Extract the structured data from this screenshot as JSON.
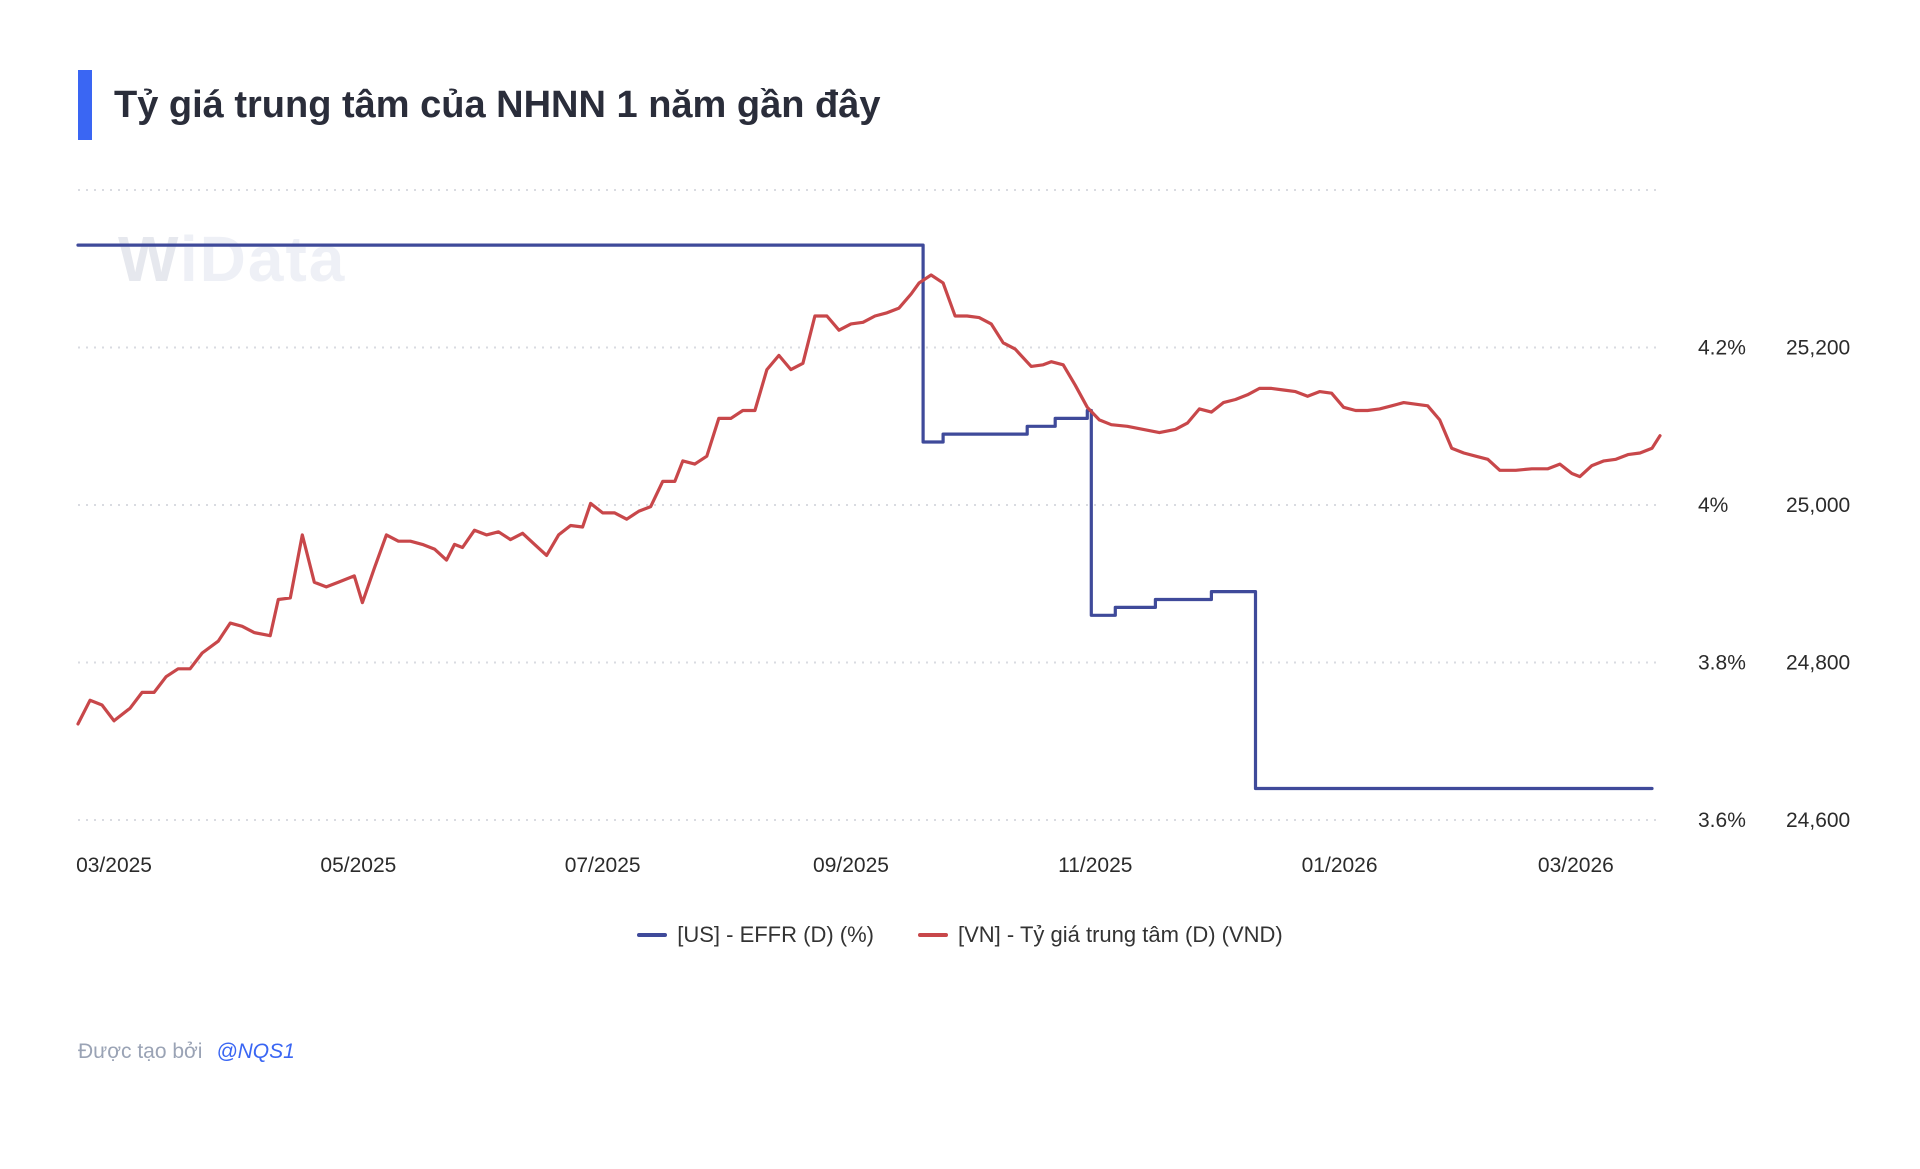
{
  "page": {
    "title": "Tỷ giá trung tâm của NHNN 1 năm gần đây"
  },
  "watermark": {
    "w": "W",
    "rest": "iData"
  },
  "credit": {
    "prefix": "Được tạo bởi",
    "handle": "@NQS1"
  },
  "colors": {
    "accent": "#3a66f3",
    "effr": "#3f4a9a",
    "vnd": "#c8474a",
    "grid": "#d9dbe1"
  },
  "chart_data": {
    "type": "line",
    "title": "Tỷ giá trung tâm của NHNN 1 năm gần đây",
    "x_ticks": [
      "03/2025",
      "05/2025",
      "07/2025",
      "09/2025",
      "11/2025",
      "01/2026",
      "03/2026"
    ],
    "x_range": [
      "2025-02-20",
      "2026-03-22"
    ],
    "y_left_ticks": [
      "4.2%",
      "4%",
      "3.8%",
      "3.6%"
    ],
    "y_right_ticks": [
      "25,200",
      "25,000",
      "24,800",
      "24,600"
    ],
    "y_left_range": [
      3.6,
      4.4
    ],
    "y_right_range": [
      24600,
      25400
    ],
    "grid": true,
    "legend_position": "bottom-center",
    "series": [
      {
        "name": "[US] - EFFR (D) (%)",
        "axis": "left",
        "step": true,
        "points": [
          [
            "2025-02-20",
            4.33
          ],
          [
            "2025-09-18",
            4.33
          ],
          [
            "2025-09-19",
            4.08
          ],
          [
            "2025-09-24",
            4.09
          ],
          [
            "2025-10-15",
            4.1
          ],
          [
            "2025-10-22",
            4.11
          ],
          [
            "2025-10-30",
            4.12
          ],
          [
            "2025-10-31",
            3.86
          ],
          [
            "2025-11-06",
            3.87
          ],
          [
            "2025-11-16",
            3.88
          ],
          [
            "2025-11-30",
            3.89
          ],
          [
            "2025-12-11",
            3.64
          ],
          [
            "2026-03-20",
            3.64
          ]
        ]
      },
      {
        "name": "[VN] - Tỷ giá trung tâm (D) (VND)",
        "axis": "right",
        "step": false,
        "points": [
          [
            "2025-02-20",
            24722
          ],
          [
            "2025-02-23",
            24752
          ],
          [
            "2025-02-26",
            24746
          ],
          [
            "2025-03-01",
            24726
          ],
          [
            "2025-03-05",
            24742
          ],
          [
            "2025-03-08",
            24762
          ],
          [
            "2025-03-11",
            24762
          ],
          [
            "2025-03-14",
            24782
          ],
          [
            "2025-03-17",
            24792
          ],
          [
            "2025-03-20",
            24792
          ],
          [
            "2025-03-23",
            24812
          ],
          [
            "2025-03-27",
            24827
          ],
          [
            "2025-03-30",
            24850
          ],
          [
            "2025-04-02",
            24846
          ],
          [
            "2025-04-05",
            24838
          ],
          [
            "2025-04-09",
            24834
          ],
          [
            "2025-04-11",
            24880
          ],
          [
            "2025-04-14",
            24882
          ],
          [
            "2025-04-17",
            24962
          ],
          [
            "2025-04-20",
            24902
          ],
          [
            "2025-04-23",
            24896
          ],
          [
            "2025-04-26",
            24902
          ],
          [
            "2025-04-30",
            24910
          ],
          [
            "2025-05-02",
            24876
          ],
          [
            "2025-05-05",
            24920
          ],
          [
            "2025-05-08",
            24962
          ],
          [
            "2025-05-11",
            24954
          ],
          [
            "2025-05-14",
            24954
          ],
          [
            "2025-05-17",
            24950
          ],
          [
            "2025-05-20",
            24944
          ],
          [
            "2025-05-23",
            24930
          ],
          [
            "2025-05-25",
            24950
          ],
          [
            "2025-05-27",
            24946
          ],
          [
            "2025-05-30",
            24968
          ],
          [
            "2025-06-02",
            24962
          ],
          [
            "2025-06-05",
            24966
          ],
          [
            "2025-06-08",
            24956
          ],
          [
            "2025-06-11",
            24964
          ],
          [
            "2025-06-14",
            24950
          ],
          [
            "2025-06-17",
            24936
          ],
          [
            "2025-06-20",
            24962
          ],
          [
            "2025-06-23",
            24974
          ],
          [
            "2025-06-26",
            24972
          ],
          [
            "2025-06-28",
            25002
          ],
          [
            "2025-07-01",
            24990
          ],
          [
            "2025-07-04",
            24990
          ],
          [
            "2025-07-07",
            24982
          ],
          [
            "2025-07-10",
            24992
          ],
          [
            "2025-07-13",
            24998
          ],
          [
            "2025-07-16",
            25030
          ],
          [
            "2025-07-19",
            25030
          ],
          [
            "2025-07-21",
            25056
          ],
          [
            "2025-07-24",
            25052
          ],
          [
            "2025-07-27",
            25062
          ],
          [
            "2025-07-30",
            25110
          ],
          [
            "2025-08-02",
            25110
          ],
          [
            "2025-08-05",
            25120
          ],
          [
            "2025-08-08",
            25120
          ],
          [
            "2025-08-11",
            25172
          ],
          [
            "2025-08-14",
            25190
          ],
          [
            "2025-08-17",
            25172
          ],
          [
            "2025-08-20",
            25180
          ],
          [
            "2025-08-23",
            25240
          ],
          [
            "2025-08-26",
            25240
          ],
          [
            "2025-08-29",
            25222
          ],
          [
            "2025-09-01",
            25230
          ],
          [
            "2025-09-04",
            25232
          ],
          [
            "2025-09-07",
            25240
          ],
          [
            "2025-09-10",
            25244
          ],
          [
            "2025-09-13",
            25250
          ],
          [
            "2025-09-16",
            25268
          ],
          [
            "2025-09-18",
            25282
          ],
          [
            "2025-09-21",
            25292
          ],
          [
            "2025-09-24",
            25282
          ],
          [
            "2025-09-27",
            25240
          ],
          [
            "2025-09-30",
            25240
          ],
          [
            "2025-10-03",
            25238
          ],
          [
            "2025-10-06",
            25230
          ],
          [
            "2025-10-09",
            25206
          ],
          [
            "2025-10-12",
            25198
          ],
          [
            "2025-10-16",
            25176
          ],
          [
            "2025-10-19",
            25178
          ],
          [
            "2025-10-21",
            25182
          ],
          [
            "2025-10-24",
            25178
          ],
          [
            "2025-10-27",
            25152
          ],
          [
            "2025-10-30",
            25124
          ],
          [
            "2025-11-02",
            25108
          ],
          [
            "2025-11-05",
            25102
          ],
          [
            "2025-11-09",
            25100
          ],
          [
            "2025-11-13",
            25096
          ],
          [
            "2025-11-17",
            25092
          ],
          [
            "2025-11-21",
            25096
          ],
          [
            "2025-11-24",
            25104
          ],
          [
            "2025-11-27",
            25122
          ],
          [
            "2025-11-30",
            25118
          ],
          [
            "2025-12-03",
            25130
          ],
          [
            "2025-12-06",
            25134
          ],
          [
            "2025-12-09",
            25140
          ],
          [
            "2025-12-12",
            25148
          ],
          [
            "2025-12-15",
            25148
          ],
          [
            "2025-12-18",
            25146
          ],
          [
            "2025-12-21",
            25144
          ],
          [
            "2025-12-24",
            25138
          ],
          [
            "2025-12-27",
            25144
          ],
          [
            "2025-12-30",
            25142
          ],
          [
            "2026-01-02",
            25124
          ],
          [
            "2026-01-05",
            25120
          ],
          [
            "2026-01-08",
            25120
          ],
          [
            "2026-01-11",
            25122
          ],
          [
            "2026-01-14",
            25126
          ],
          [
            "2026-01-17",
            25130
          ],
          [
            "2026-01-20",
            25128
          ],
          [
            "2026-01-23",
            25126
          ],
          [
            "2026-01-26",
            25108
          ],
          [
            "2026-01-29",
            25072
          ],
          [
            "2026-02-01",
            25066
          ],
          [
            "2026-02-04",
            25062
          ],
          [
            "2026-02-07",
            25058
          ],
          [
            "2026-02-10",
            25044
          ],
          [
            "2026-02-14",
            25044
          ],
          [
            "2026-02-18",
            25046
          ],
          [
            "2026-02-22",
            25046
          ],
          [
            "2026-02-25",
            25052
          ],
          [
            "2026-02-28",
            25040
          ],
          [
            "2026-03-02",
            25036
          ],
          [
            "2026-03-05",
            25050
          ],
          [
            "2026-03-08",
            25056
          ],
          [
            "2026-03-11",
            25058
          ],
          [
            "2026-03-14",
            25064
          ],
          [
            "2026-03-17",
            25066
          ],
          [
            "2026-03-20",
            25072
          ],
          [
            "2026-03-22",
            25088
          ]
        ]
      }
    ]
  }
}
